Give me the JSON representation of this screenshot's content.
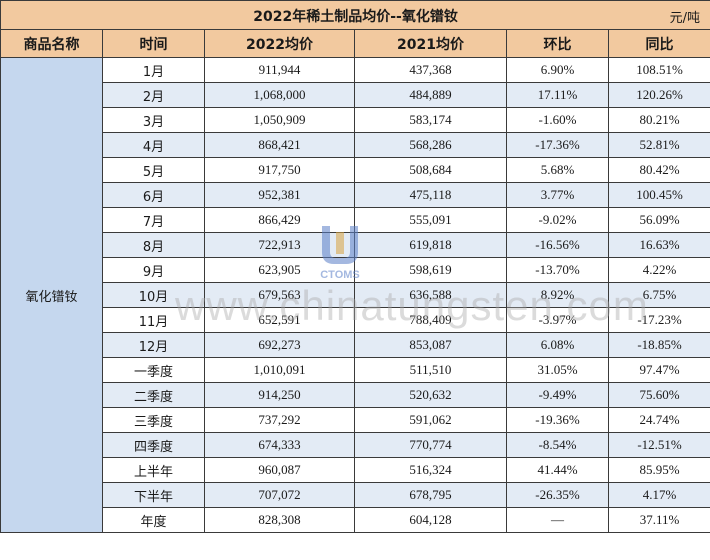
{
  "title": "2022年稀土制品均价--氧化镨钕",
  "unit": "元/吨",
  "headers": [
    "商品名称",
    "时间",
    "2022均价",
    "2021均价",
    "环比",
    "同比"
  ],
  "product_name": "氧化镨钕",
  "watermark": "www.chinatungsten.com",
  "logo_text": "CTOMS",
  "rows": [
    {
      "time": "1月",
      "p2022": "911,944",
      "p2021": "437,368",
      "mom": "6.90%",
      "yoy": "108.51%"
    },
    {
      "time": "2月",
      "p2022": "1,068,000",
      "p2021": "484,889",
      "mom": "17.11%",
      "yoy": "120.26%"
    },
    {
      "time": "3月",
      "p2022": "1,050,909",
      "p2021": "583,174",
      "mom": "-1.60%",
      "yoy": "80.21%"
    },
    {
      "time": "4月",
      "p2022": "868,421",
      "p2021": "568,286",
      "mom": "-17.36%",
      "yoy": "52.81%"
    },
    {
      "time": "5月",
      "p2022": "917,750",
      "p2021": "508,684",
      "mom": "5.68%",
      "yoy": "80.42%"
    },
    {
      "time": "6月",
      "p2022": "952,381",
      "p2021": "475,118",
      "mom": "3.77%",
      "yoy": "100.45%"
    },
    {
      "time": "7月",
      "p2022": "866,429",
      "p2021": "555,091",
      "mom": "-9.02%",
      "yoy": "56.09%"
    },
    {
      "time": "8月",
      "p2022": "722,913",
      "p2021": "619,818",
      "mom": "-16.56%",
      "yoy": "16.63%"
    },
    {
      "time": "9月",
      "p2022": "623,905",
      "p2021": "598,619",
      "mom": "-13.70%",
      "yoy": "4.22%"
    },
    {
      "time": "10月",
      "p2022": "679,563",
      "p2021": "636,588",
      "mom": "8.92%",
      "yoy": "6.75%"
    },
    {
      "time": "11月",
      "p2022": "652,591",
      "p2021": "788,409",
      "mom": "-3.97%",
      "yoy": "-17.23%"
    },
    {
      "time": "12月",
      "p2022": "692,273",
      "p2021": "853,087",
      "mom": "6.08%",
      "yoy": "-18.85%"
    },
    {
      "time": "一季度",
      "p2022": "1,010,091",
      "p2021": "511,510",
      "mom": "31.05%",
      "yoy": "97.47%"
    },
    {
      "time": "二季度",
      "p2022": "914,250",
      "p2021": "520,632",
      "mom": "-9.49%",
      "yoy": "75.60%"
    },
    {
      "time": "三季度",
      "p2022": "737,292",
      "p2021": "591,062",
      "mom": "-19.36%",
      "yoy": "24.74%"
    },
    {
      "time": "四季度",
      "p2022": "674,333",
      "p2021": "770,774",
      "mom": "-8.54%",
      "yoy": "-12.51%"
    },
    {
      "time": "上半年",
      "p2022": "960,087",
      "p2021": "516,324",
      "mom": "41.44%",
      "yoy": "85.95%"
    },
    {
      "time": "下半年",
      "p2022": "707,072",
      "p2021": "678,795",
      "mom": "-26.35%",
      "yoy": "4.17%"
    },
    {
      "time": "年度",
      "p2022": "828,308",
      "p2021": "604,128",
      "mom": "—",
      "yoy": "37.11%"
    }
  ],
  "colors": {
    "header_bg": "#f2c99f",
    "name_bg": "#c5d7ee",
    "alt_row_bg": "#e3ebf5",
    "positive": "#e60012",
    "negative": "#16a02a"
  }
}
